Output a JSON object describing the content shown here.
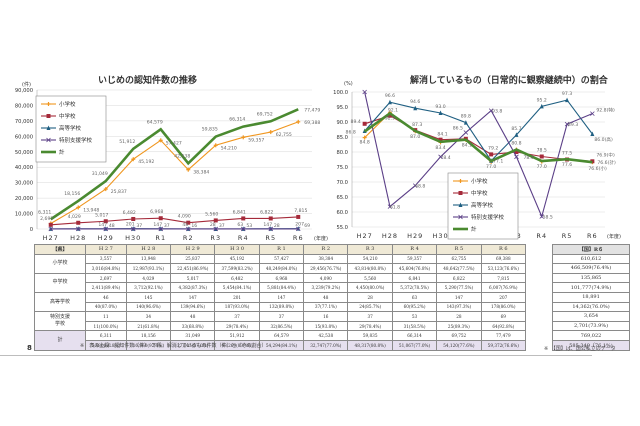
{
  "page_number": "8",
  "notes": {
    "table_note": "※　表の上段：認知件数（件）　下段：解消しているもの件数（件）と（その割合）",
    "national_note": "※　【国】は、国公私立のデータ"
  },
  "chart_data": [
    {
      "type": "line",
      "title": "いじめの認知件数の推移",
      "ylabel": "(件)",
      "xlabel": "(年度)",
      "ylim": [
        0,
        90000
      ],
      "yticks": [
        "0",
        "10,000",
        "20,000",
        "30,000",
        "40,000",
        "50,000",
        "60,000",
        "70,000",
        "80,000",
        "90,000"
      ],
      "categories": [
        "H27",
        "H28",
        "H29",
        "H30",
        "R1",
        "R2",
        "R3",
        "R4",
        "R5",
        "R6"
      ],
      "grid": true,
      "legend_position": "upper-left inside",
      "series": [
        {
          "name": "小学校",
          "color": "#f0961e",
          "marker": "plus",
          "values": [
            3557,
            13948,
            25837,
            45192,
            57427,
            38384,
            54210,
            59357,
            62755,
            69388
          ],
          "labels": [
            "",
            "13,948",
            "25,837",
            "45,192",
            "57,427",
            "38,384",
            "54,210",
            "59,357",
            "62,755",
            "69,388"
          ]
        },
        {
          "name": "中学校",
          "color": "#a52a3a",
          "marker": "square",
          "values": [
            2697,
            4029,
            5017,
            6482,
            6968,
            4090,
            5560,
            6841,
            6822,
            7815
          ],
          "labels": [
            "2,697",
            "4,029",
            "5,017",
            "6,482",
            "6,968",
            "4,090",
            "5,560",
            "6,841",
            "6,822",
            "7,815"
          ]
        },
        {
          "name": "高等学校",
          "color": "#1f5f82",
          "marker": "triangle",
          "values": [
            46,
            145,
            147,
            201,
            147,
            48,
            28,
            63,
            147,
            207
          ],
          "labels": [
            "",
            "",
            "147",
            "201",
            "147",
            "48",
            "28",
            "63",
            "147",
            "207"
          ]
        },
        {
          "name": "特別支援学校",
          "color": "#5b3f87",
          "marker": "x",
          "values": [
            11,
            34,
            48,
            37,
            37,
            16,
            37,
            53,
            28,
            69
          ],
          "labels": [
            "",
            "",
            "48",
            "37",
            "37",
            "16",
            "37",
            "53",
            "28",
            "69"
          ]
        },
        {
          "name": "計",
          "color": "#4a8a30",
          "marker": "none",
          "values": [
            6311,
            18156,
            31049,
            51912,
            64579,
            42538,
            59835,
            66314,
            69752,
            77479
          ],
          "labels": [
            "6,311",
            "18,156",
            "31,049",
            "51,912",
            "64,579",
            "42,538",
            "59,835",
            "66,314",
            "69,752",
            "77,479"
          ]
        }
      ]
    },
    {
      "type": "line",
      "title": "解消しているもの（日常的に観察継続中）の割合",
      "ylabel": "(%)",
      "xlabel": "(年度)",
      "ylim": [
        55,
        100
      ],
      "yticks": [
        "55.0",
        "60.0",
        "65.0",
        "70.0",
        "75.0",
        "80.0",
        "85.0",
        "90.0",
        "95.0",
        "100.0"
      ],
      "categories": [
        "H27",
        "H28",
        "H29",
        "H30",
        "R1",
        "R2",
        "R3",
        "R4",
        "R5",
        "R6"
      ],
      "grid": true,
      "legend_position": "lower-center inside",
      "series": [
        {
          "name": "小学校",
          "color": "#f0961e",
          "marker": "plus",
          "values": [
            84.8,
            93.1,
            86.9,
            83.2,
            84.0,
            76.7,
            80.8,
            76.8,
            77.5,
            76.6
          ]
        },
        {
          "name": "中学校",
          "color": "#a52a3a",
          "marker": "square",
          "values": [
            89.4,
            92.1,
            87.3,
            84.1,
            84.4,
            79.2,
            80.0,
            78.5,
            77.5,
            76.9
          ]
        },
        {
          "name": "高等学校",
          "color": "#1f5f82",
          "marker": "triangle",
          "values": [
            87.0,
            96.6,
            94.6,
            93.0,
            89.8,
            77.1,
            85.7,
            95.2,
            97.3,
            86.0
          ]
        },
        {
          "name": "特別支援学校",
          "color": "#5b3f87",
          "marker": "x",
          "values": [
            100.0,
            61.8,
            68.8,
            78.4,
            86.5,
            93.8,
            78.4,
            58.5,
            89.3,
            92.8
          ]
        },
        {
          "name": "計",
          "color": "#4a8a30",
          "marker": "none",
          "values": [
            86.8,
            92.9,
            87.0,
            83.4,
            84.1,
            77.0,
            80.8,
            77.0,
            77.6,
            76.6
          ]
        }
      ],
      "point_labels": [
        {
          "x": "H27",
          "text": "89.4"
        },
        {
          "x": "H27",
          "text": "86.8"
        },
        {
          "x": "H27",
          "text": "84.8"
        },
        {
          "x": "H28",
          "text": "96.6"
        },
        {
          "x": "H28",
          "text": "92.1"
        },
        {
          "x": "H28",
          "text": "92.9"
        },
        {
          "x": "H28",
          "text": "61.8"
        },
        {
          "x": "H29",
          "text": "94.6"
        },
        {
          "x": "H29",
          "text": "87.3"
        },
        {
          "x": "H29",
          "text": "87.0"
        },
        {
          "x": "H29",
          "text": "68.8"
        },
        {
          "x": "H30",
          "text": "93.0"
        },
        {
          "x": "H30",
          "text": "84.1"
        },
        {
          "x": "H30",
          "text": "83.4"
        },
        {
          "x": "H30",
          "text": "78.4"
        },
        {
          "x": "R1",
          "text": "89.8"
        },
        {
          "x": "R1",
          "text": "86.5"
        },
        {
          "x": "R1",
          "text": "84.1"
        },
        {
          "x": "R2",
          "text": "93.8"
        },
        {
          "x": "R2",
          "text": "79.2"
        },
        {
          "x": "R2",
          "text": "77.0"
        },
        {
          "x": "R2",
          "text": "77.1"
        },
        {
          "x": "R3",
          "text": "85.7"
        },
        {
          "x": "R3",
          "text": "80.8"
        },
        {
          "x": "R3",
          "text": "78.4"
        },
        {
          "x": "R4",
          "text": "95.2"
        },
        {
          "x": "R4",
          "text": "78.5"
        },
        {
          "x": "R4",
          "text": "77.0"
        },
        {
          "x": "R4",
          "text": "58.5"
        },
        {
          "x": "R5",
          "text": "97.3"
        },
        {
          "x": "R5",
          "text": "89.3"
        },
        {
          "x": "R5",
          "text": "77.5"
        },
        {
          "x": "R5",
          "text": "77.6"
        },
        {
          "x": "R6",
          "text": "92.8(特)"
        },
        {
          "x": "R6",
          "text": "86.0(高)"
        },
        {
          "x": "R6",
          "text": "76.9(中)"
        },
        {
          "x": "R6",
          "text": "76.6(計)"
        },
        {
          "x": "R6",
          "text": "76.6(小)"
        }
      ]
    },
    {
      "type": "table",
      "corner": "【県】",
      "columns": [
        "H27",
        "H28",
        "H29",
        "H30",
        "R1",
        "R2",
        "R3",
        "R4",
        "R5",
        "R6"
      ],
      "rows": [
        {
          "label": "小学校",
          "top": [
            "3,557",
            "13,948",
            "25,837",
            "45,192",
            "57,427",
            "38,384",
            "54,210",
            "59,357",
            "62,755",
            "69,388"
          ],
          "bottom": [
            "3,016(84.8%)",
            "12,987(93.1%)",
            "22,451(86.9%)",
            "37,599(83.2%)",
            "48,249(84.0%)",
            "29,456(76.7%)",
            "43,814(80.8%)",
            "45,604(76.8%)",
            "48,642(77.5%)",
            "53,123(76.6%)"
          ]
        },
        {
          "label": "中学校",
          "top": [
            "2,697",
            "4,029",
            "5,017",
            "6,482",
            "6,968",
            "4,090",
            "5,560",
            "6,841",
            "6,822",
            "7,815"
          ],
          "bottom": [
            "2,411(89.4%)",
            "3,712(92.1%)",
            "4,382(87.3%)",
            "5,454(84.1%)",
            "5,881(84.4%)",
            "3,239(79.2%)",
            "4,450(80.0%)",
            "5,372(78.5%)",
            "5,290(77.5%)",
            "6,007(76.9%)"
          ]
        },
        {
          "label": "高等学校",
          "top": [
            "46",
            "145",
            "147",
            "201",
            "147",
            "48",
            "28",
            "63",
            "147",
            "207"
          ],
          "bottom": [
            "40(87.0%)",
            "140(96.6%)",
            "139(94.6%)",
            "187(93.0%)",
            "132(89.8%)",
            "37(77.1%)",
            "24(85.7%)",
            "60(95.2%)",
            "143(97.3%)",
            "178(86.0%)"
          ]
        },
        {
          "label": "特別支援学校",
          "top": [
            "11",
            "34",
            "48",
            "37",
            "37",
            "16",
            "37",
            "53",
            "28",
            "69"
          ],
          "bottom": [
            "11(100.0%)",
            "21(61.8%)",
            "33(68.8%)",
            "29(78.4%)",
            "32(86.5%)",
            "15(93.8%)",
            "29(78.4%)",
            "31(58.5%)",
            "25(89.3%)",
            "64(92.8%)"
          ]
        },
        {
          "label": "計",
          "top": [
            "6,311",
            "18,156",
            "31,049",
            "51,912",
            "64,579",
            "42,538",
            "59,835",
            "66,314",
            "69,752",
            "77,479"
          ],
          "bottom": [
            "5,480(86.8%)",
            "16,860(92.9%)",
            "27,005(87.0%)",
            "43,269(83.4%)",
            "54,294(84.1%)",
            "32,747(77.0%)",
            "48,317(80.8%)",
            "51,067(77.0%)",
            "54,120(77.6%)",
            "59,372(76.6%)"
          ]
        }
      ]
    },
    {
      "type": "table",
      "header": "【国】R６",
      "rows": [
        {
          "label": "小学校",
          "top": "610,612",
          "bottom": "466,509(76.4%)"
        },
        {
          "label": "中学校",
          "top": "135,865",
          "bottom": "101,777(74.9%)"
        },
        {
          "label": "高等学校",
          "top": "18,891",
          "bottom": "14,362(76.0%)"
        },
        {
          "label": "特別支援学校",
          "top": "3,654",
          "bottom": "2,701(73.9%)"
        },
        {
          "label": "計",
          "top": "769,022",
          "bottom": "585,349（76.1%)"
        }
      ]
    }
  ]
}
